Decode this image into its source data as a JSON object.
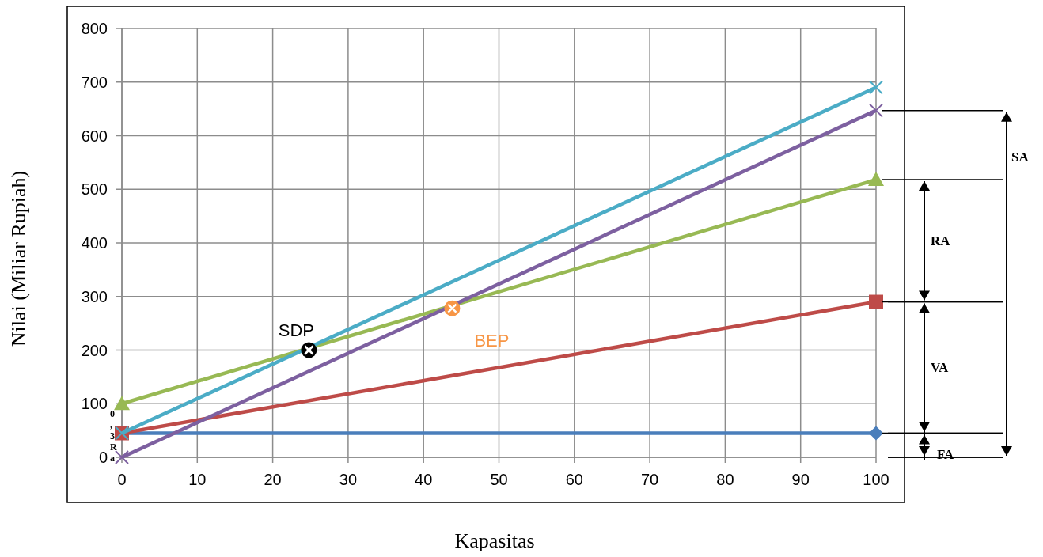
{
  "chart_data": {
    "type": "line",
    "xlabel": "Kapasitas",
    "ylabel": "Nilai (Miliar Rupiah)",
    "xlim": [
      0,
      100
    ],
    "xticks": [
      0,
      10,
      20,
      30,
      40,
      50,
      60,
      70,
      80,
      90,
      100
    ],
    "ylim": [
      0,
      800
    ],
    "yticks": [
      0,
      100,
      200,
      300,
      400,
      500,
      600,
      700,
      800
    ],
    "grid": true,
    "series": [
      {
        "color": "#4a7ebb",
        "x": [
          0,
          100
        ],
        "values": [
          45,
          45
        ],
        "marker": "diamond"
      },
      {
        "color": "#be4b48",
        "x": [
          0,
          100
        ],
        "values": [
          45,
          290
        ],
        "marker": "square"
      },
      {
        "color": "#98b954",
        "x": [
          0,
          100
        ],
        "values": [
          100,
          518
        ],
        "marker": "triangle"
      },
      {
        "color": "#4bacc6",
        "x": [
          0,
          100
        ],
        "values": [
          45,
          690
        ],
        "marker": "cross"
      },
      {
        "color": "#7d60a0",
        "x": [
          0,
          100
        ],
        "values": [
          0,
          647
        ],
        "marker": "cross"
      },
      {
        "type": "scatter",
        "color": "#000000",
        "x": [
          24.8
        ],
        "values": [
          200
        ],
        "marker": "circle"
      },
      {
        "type": "scatter",
        "color": "#f79646",
        "x": [
          43.8
        ],
        "values": [
          278
        ],
        "marker": "circle"
      }
    ],
    "annotations": [
      {
        "text": "SDP",
        "x": 24.8,
        "y": 200
      },
      {
        "text": "BEP",
        "x": 43.8,
        "y": 278
      },
      "0,3 Ra",
      "SA",
      "RA",
      "VA",
      "FA"
    ]
  }
}
